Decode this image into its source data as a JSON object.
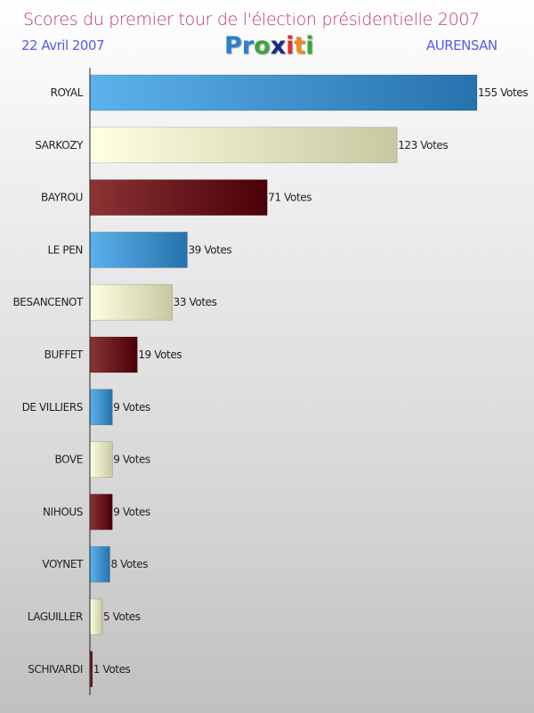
{
  "header": {
    "title": "Scores du premier tour de l'élection présidentielle 2007",
    "date": "22 Avril 2007",
    "place": "AURENSAN",
    "logo": "Proxiti"
  },
  "chart_data": {
    "type": "bar",
    "orientation": "horizontal",
    "title": "Scores du premier tour de l'élection présidentielle 2007",
    "categories": [
      "ROYAL",
      "SARKOZY",
      "BAYROU",
      "LE PEN",
      "BESANCENOT",
      "BUFFET",
      "DE VILLIERS",
      "BOVE",
      "NIHOUS",
      "VOYNET",
      "LAGUILLER",
      "SCHIVARDI"
    ],
    "values": [
      155,
      123,
      71,
      39,
      33,
      19,
      9,
      9,
      9,
      8,
      5,
      1
    ],
    "value_suffix": " Votes",
    "xlim": [
      0,
      155
    ],
    "grid": false,
    "colors": [
      "#3a8fd0",
      "#e8e8c0",
      "#6a1018"
    ]
  }
}
